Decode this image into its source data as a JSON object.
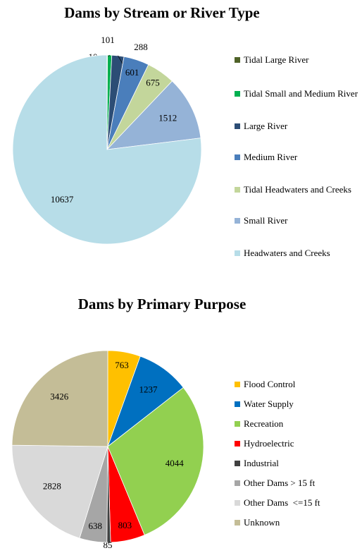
{
  "chart_data": [
    {
      "type": "pie",
      "title": "Dams by Stream or River Type",
      "categories": [
        "Tidal Large River",
        "Tidal Small and Medium River",
        "Large River",
        "Medium River",
        "Tidal Headwaters and Creeks",
        "Small River",
        "Headwaters and Creeks"
      ],
      "values": [
        10,
        101,
        288,
        601,
        675,
        1512,
        10637
      ],
      "colors": [
        "#4f6228",
        "#00b050",
        "#2c4d75",
        "#4a7ebb",
        "#c3d69b",
        "#95b3d7",
        "#b7dde8"
      ]
    },
    {
      "type": "pie",
      "title": "Dams by Primary Purpose",
      "categories": [
        "Flood Control",
        "Water Supply",
        "Recreation",
        "Hydroelectric",
        "Industrial",
        "Other Dams > 15 ft",
        "Other Dams  <=15 ft",
        "Unknown"
      ],
      "values": [
        763,
        1237,
        4044,
        803,
        85,
        638,
        2828,
        3426
      ],
      "colors": [
        "#ffc000",
        "#0070c0",
        "#92d050",
        "#ff0000",
        "#404040",
        "#a6a6a6",
        "#d9d9d9",
        "#c4bd97"
      ]
    }
  ]
}
